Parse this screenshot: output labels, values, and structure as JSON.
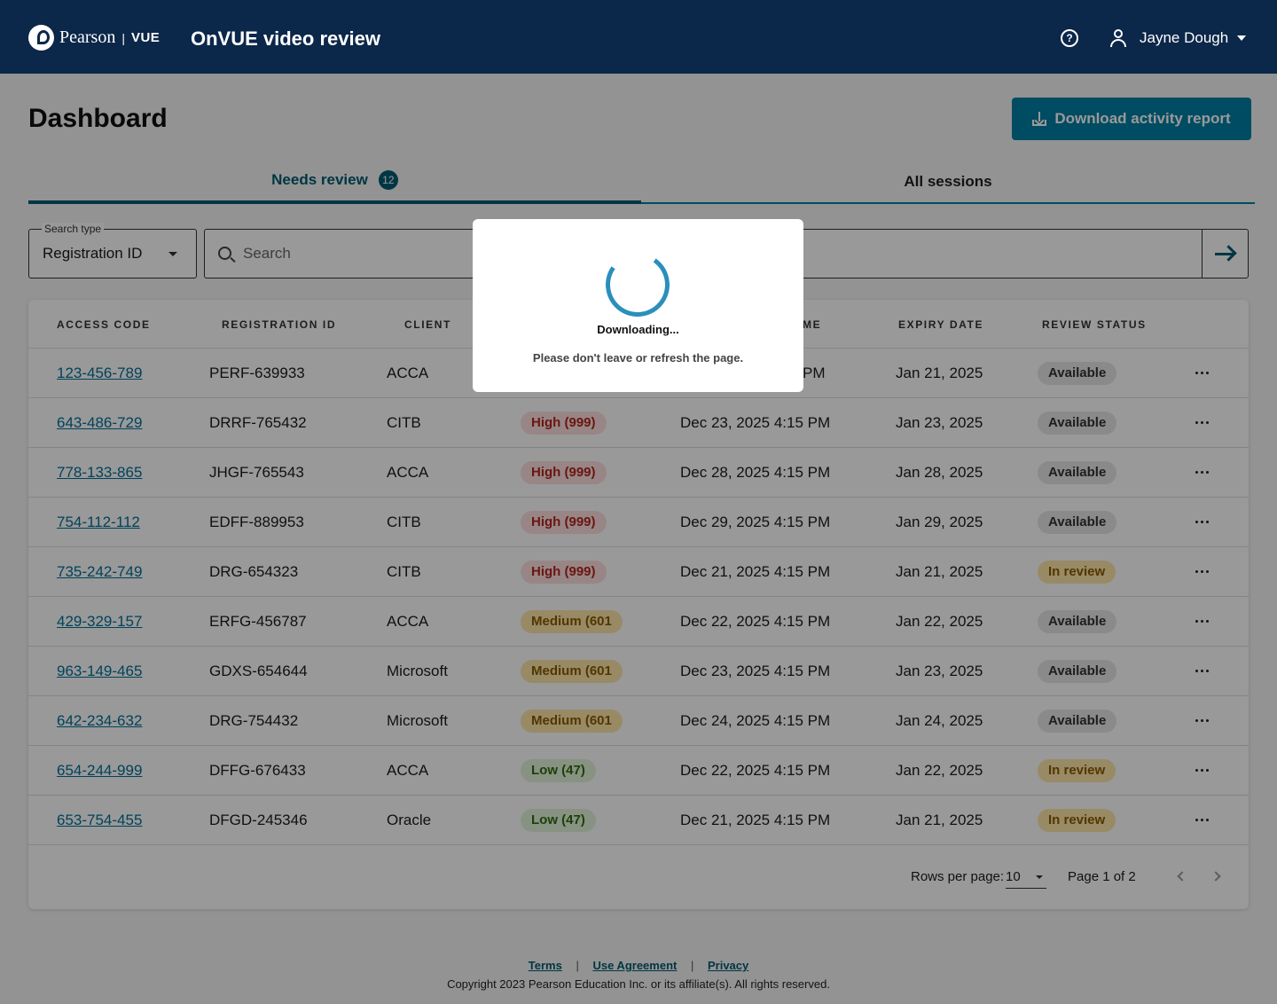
{
  "header": {
    "logo_brand": "Pearson",
    "logo_divider": "|",
    "logo_product": "VUE",
    "app_title": "OnVUE video review",
    "help_symbol": "?",
    "user_name": "Jayne Dough"
  },
  "dashboard": {
    "title": "Dashboard",
    "download_label": "Download activity report"
  },
  "tabs": {
    "needs_review_label": "Needs review",
    "needs_review_count": "12",
    "all_sessions_label": "All sessions"
  },
  "search": {
    "type_label": "Search type",
    "type_value": "Registration ID",
    "placeholder": "Search"
  },
  "table": {
    "columns": [
      "ACCESS CODE",
      "REGISTRATION ID",
      "CLIENT",
      "ME",
      "EXPIRY DATE",
      "REVIEW STATUS"
    ],
    "rows": [
      {
        "access_code": "123-456-789",
        "registration_id": "PERF-639933",
        "client": "ACCA",
        "risk": "",
        "risk_level": "",
        "time": "PM",
        "expiry": "Jan 21, 2025",
        "status": "Available"
      },
      {
        "access_code": "643-486-729",
        "registration_id": "DRRF-765432",
        "client": "CITB",
        "risk": "High (999)",
        "risk_level": "high",
        "time": "Dec 23, 2025 4:15 PM",
        "expiry": "Jan 23, 2025",
        "status": "Available"
      },
      {
        "access_code": "778-133-865",
        "registration_id": "JHGF-765543",
        "client": "ACCA",
        "risk": "High (999)",
        "risk_level": "high",
        "time": "Dec 28, 2025 4:15 PM",
        "expiry": "Jan 28, 2025",
        "status": "Available"
      },
      {
        "access_code": "754-112-112",
        "registration_id": "EDFF-889953",
        "client": "CITB",
        "risk": "High (999)",
        "risk_level": "high",
        "time": "Dec 29, 2025 4:15 PM",
        "expiry": "Jan 29, 2025",
        "status": "Available"
      },
      {
        "access_code": "735-242-749",
        "registration_id": "DRG-654323",
        "client": "CITB",
        "risk": "High (999)",
        "risk_level": "high",
        "time": "Dec 21, 2025 4:15 PM",
        "expiry": "Jan 21, 2025",
        "status": "In review"
      },
      {
        "access_code": "429-329-157",
        "registration_id": "ERFG-456787",
        "client": "ACCA",
        "risk": "Medium (601",
        "risk_level": "medium",
        "time": "Dec 22, 2025 4:15 PM",
        "expiry": "Jan 22, 2025",
        "status": "Available"
      },
      {
        "access_code": "963-149-465",
        "registration_id": "GDXS-654644",
        "client": "Microsoft",
        "risk": "Medium (601",
        "risk_level": "medium",
        "time": "Dec 23, 2025 4:15 PM",
        "expiry": "Jan 23, 2025",
        "status": "Available"
      },
      {
        "access_code": "642-234-632",
        "registration_id": "DRG-754432",
        "client": "Microsoft",
        "risk": "Medium (601",
        "risk_level": "medium",
        "time": "Dec 24, 2025 4:15 PM",
        "expiry": "Jan 24, 2025",
        "status": "Available"
      },
      {
        "access_code": "654-244-999",
        "registration_id": "DFFG-676433",
        "client": "ACCA",
        "risk": "Low (47)",
        "risk_level": "low",
        "time": "Dec 22, 2025 4:15 PM",
        "expiry": "Jan 22, 2025",
        "status": "In review"
      },
      {
        "access_code": "653-754-455",
        "registration_id": "DFGD-245346",
        "client": "Oracle",
        "risk": "Low (47)",
        "risk_level": "low",
        "time": "Dec 21, 2025 4:15 PM",
        "expiry": "Jan 21, 2025",
        "status": "In review"
      }
    ]
  },
  "pagination": {
    "rows_per_page_label": "Rows per page:",
    "rows_per_page_value": "10",
    "page_info": "Page 1 of 2"
  },
  "footer": {
    "links": [
      "Terms",
      "Use Agreement",
      "Privacy"
    ],
    "separator": "|",
    "copyright": "Copyright 2023 Pearson Education Inc. or its affiliate(s). All rights reserved."
  },
  "modal": {
    "title": "Downloading...",
    "message": "Please don't leave or refresh the page."
  },
  "colors": {
    "header_bg": "#0b2749",
    "accent": "#007fa3",
    "tab_active": "#005a70",
    "link": "#006f96",
    "risk_high_bg": "#fde0df",
    "risk_high_text": "#b3261e",
    "risk_medium_bg": "#fde7a8",
    "risk_medium_text": "#8a5a00",
    "risk_low_bg": "#e3f4d9",
    "risk_low_text": "#2e6b12",
    "status_available_bg": "#e6e6e6",
    "status_available_text": "#333333",
    "status_in_review_bg": "#fde7a8",
    "status_in_review_text": "#8a5a00"
  }
}
